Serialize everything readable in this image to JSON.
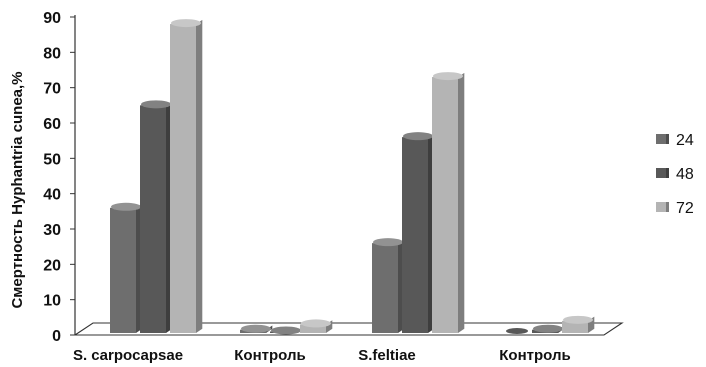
{
  "chart_data": {
    "type": "bar",
    "ylabel": "Смертность Hyphantria cunea,%",
    "ylim": [
      0,
      90
    ],
    "yticks": [
      0,
      10,
      20,
      30,
      40,
      50,
      60,
      70,
      80,
      90
    ],
    "categories": [
      "S. carpocapsae",
      "Контроль",
      "S.feltiae",
      "Контроль"
    ],
    "series": [
      {
        "name": "24",
        "color": "#6e6e6e",
        "values": [
          36,
          1.5,
          26,
          0
        ]
      },
      {
        "name": "48",
        "color": "#585858",
        "values": [
          65,
          1,
          56,
          1.5
        ]
      },
      {
        "name": "72",
        "color": "#b4b4b4",
        "values": [
          88,
          3,
          73,
          4
        ]
      }
    ],
    "legend_position": "right",
    "style": "3d-column",
    "grid": false
  }
}
